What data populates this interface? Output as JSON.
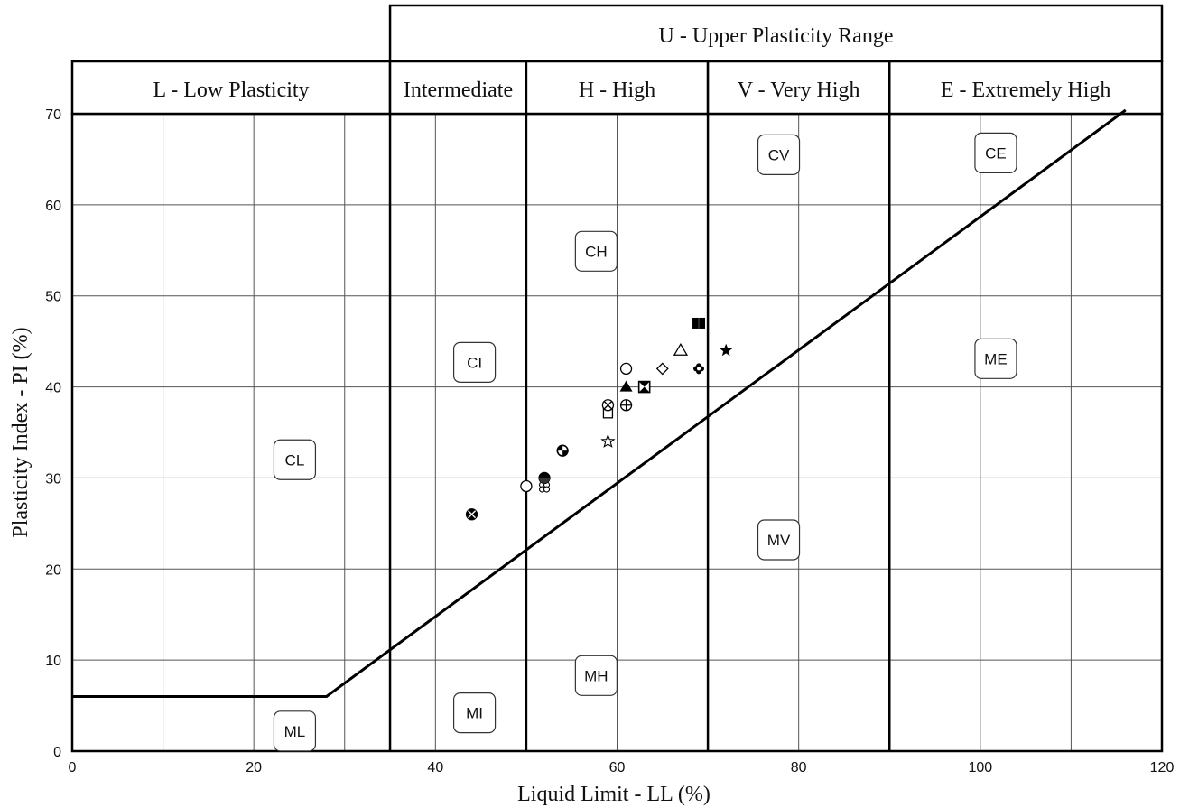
{
  "chart_data": {
    "type": "scatter",
    "title": "",
    "xlabel": "Liquid Limit - LL (%)",
    "ylabel": "Plasticity Index - PI (%)",
    "xlim": [
      0,
      120
    ],
    "ylim": [
      0,
      70
    ],
    "x_ticks": [
      0,
      20,
      40,
      60,
      80,
      100,
      120
    ],
    "y_ticks": [
      0,
      10,
      20,
      30,
      40,
      50,
      60,
      70
    ],
    "grid": true,
    "legend": "none",
    "headers": {
      "upper": {
        "label": "U - Upper Plasticity Range",
        "from": 35,
        "to": 120
      },
      "zones": [
        {
          "label": "L - Low Plasticity",
          "from": 0,
          "to": 35
        },
        {
          "label": "Intermediate",
          "from": 35,
          "to": 50
        },
        {
          "label": "H - High",
          "from": 50,
          "to": 70
        },
        {
          "label": "V - Very High",
          "from": 70,
          "to": 90
        },
        {
          "label": "E - Extremely High",
          "from": 90,
          "to": 120
        }
      ]
    },
    "a_line": [
      [
        0,
        6
      ],
      [
        28,
        6
      ],
      [
        116,
        70.4
      ]
    ],
    "zone_labels": [
      {
        "text": "CL",
        "x": 24.5,
        "y": 32
      },
      {
        "text": "ML",
        "x": 24.5,
        "y": 2.2
      },
      {
        "text": "CI",
        "x": 44.3,
        "y": 42.7
      },
      {
        "text": "MI",
        "x": 44.3,
        "y": 4.2
      },
      {
        "text": "CH",
        "x": 57.7,
        "y": 54.9
      },
      {
        "text": "MH",
        "x": 57.7,
        "y": 8.3
      },
      {
        "text": "CV",
        "x": 77.8,
        "y": 65.5
      },
      {
        "text": "MV",
        "x": 77.8,
        "y": 23.2
      },
      {
        "text": "CE",
        "x": 101.7,
        "y": 65.7
      },
      {
        "text": "ME",
        "x": 101.7,
        "y": 43.1
      }
    ],
    "points": [
      {
        "x": 44,
        "y": 26,
        "marker": "circle-x-filled"
      },
      {
        "x": 50,
        "y": 29.1,
        "marker": "circle-open"
      },
      {
        "x": 52,
        "y": 29,
        "marker": "clover"
      },
      {
        "x": 52,
        "y": 30,
        "marker": "circle-half"
      },
      {
        "x": 54,
        "y": 33,
        "marker": "circle-quarter"
      },
      {
        "x": 59,
        "y": 34,
        "marker": "star-open"
      },
      {
        "x": 59,
        "y": 37.2,
        "marker": "square-open"
      },
      {
        "x": 59,
        "y": 38,
        "marker": "circle-x"
      },
      {
        "x": 61,
        "y": 38,
        "marker": "circle-plus"
      },
      {
        "x": 61,
        "y": 40,
        "marker": "triangle-filled"
      },
      {
        "x": 61,
        "y": 42,
        "marker": "circle-open"
      },
      {
        "x": 63,
        "y": 40,
        "marker": "hourglass-square"
      },
      {
        "x": 65,
        "y": 42,
        "marker": "diamond-open"
      },
      {
        "x": 67,
        "y": 44,
        "marker": "triangle-open"
      },
      {
        "x": 69,
        "y": 42,
        "marker": "flower"
      },
      {
        "x": 69,
        "y": 47,
        "marker": "square-filled"
      },
      {
        "x": 72,
        "y": 44,
        "marker": "star-filled"
      }
    ]
  }
}
